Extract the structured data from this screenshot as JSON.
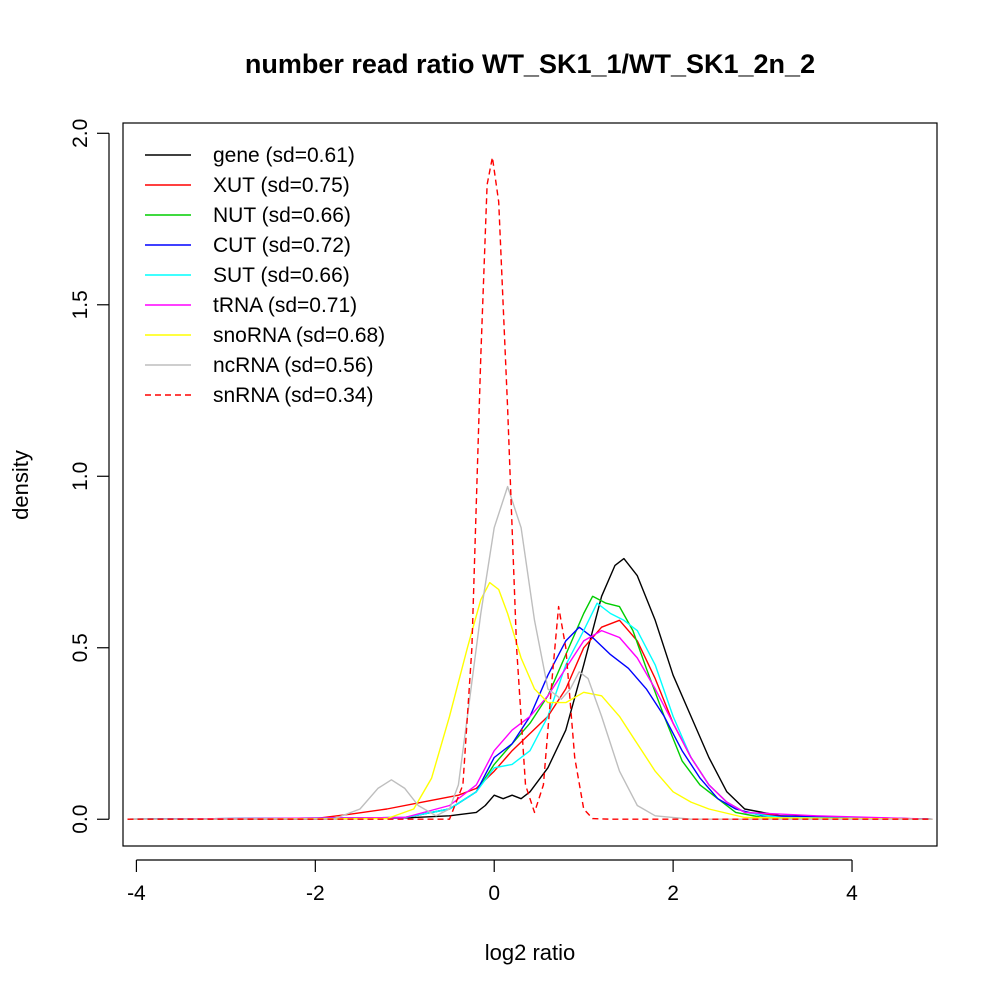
{
  "chart_data": {
    "type": "line",
    "title": "number read ratio WT_SK1_1/WT_SK1_2n_2",
    "xlabel": "log2 ratio",
    "ylabel": "density",
    "xlim": [
      -4.15,
      4.95
    ],
    "ylim": [
      -0.078,
      2.03
    ],
    "x_ticks": [
      -4,
      -2,
      0,
      2,
      4
    ],
    "x_tick_labels": [
      "-4",
      "-2",
      "0",
      "2",
      "4"
    ],
    "y_ticks": [
      0.0,
      0.5,
      1.0,
      1.5,
      2.0
    ],
    "y_tick_labels": [
      "0.0",
      "0.5",
      "1.0",
      "1.5",
      "2.0"
    ],
    "grid": false,
    "legend_position": "top-left",
    "series": [
      {
        "name": "gene (sd=0.61)",
        "color": "#000000",
        "dash": false,
        "points": [
          [
            -4.1,
            0
          ],
          [
            -2,
            0
          ],
          [
            -1,
            0.004
          ],
          [
            -0.5,
            0.01
          ],
          [
            -0.2,
            0.02
          ],
          [
            -0.1,
            0.04
          ],
          [
            0,
            0.07
          ],
          [
            0.1,
            0.06
          ],
          [
            0.2,
            0.07
          ],
          [
            0.3,
            0.06
          ],
          [
            0.4,
            0.08
          ],
          [
            0.6,
            0.15
          ],
          [
            0.8,
            0.26
          ],
          [
            1.0,
            0.45
          ],
          [
            1.2,
            0.65
          ],
          [
            1.35,
            0.74
          ],
          [
            1.45,
            0.76
          ],
          [
            1.6,
            0.71
          ],
          [
            1.8,
            0.58
          ],
          [
            2.0,
            0.42
          ],
          [
            2.2,
            0.3
          ],
          [
            2.4,
            0.18
          ],
          [
            2.6,
            0.08
          ],
          [
            2.8,
            0.03
          ],
          [
            3.2,
            0.01
          ],
          [
            4.9,
            0
          ]
        ]
      },
      {
        "name": "XUT (sd=0.75)",
        "color": "#ff0000",
        "dash": false,
        "points": [
          [
            -4.1,
            0
          ],
          [
            -2,
            0.002
          ],
          [
            -1.6,
            0.015
          ],
          [
            -1.2,
            0.03
          ],
          [
            -0.8,
            0.05
          ],
          [
            -0.4,
            0.07
          ],
          [
            -0.2,
            0.09
          ],
          [
            0,
            0.14
          ],
          [
            0.2,
            0.2
          ],
          [
            0.4,
            0.25
          ],
          [
            0.6,
            0.3
          ],
          [
            0.8,
            0.38
          ],
          [
            1.0,
            0.5
          ],
          [
            1.2,
            0.56
          ],
          [
            1.4,
            0.58
          ],
          [
            1.6,
            0.52
          ],
          [
            1.8,
            0.41
          ],
          [
            2.0,
            0.28
          ],
          [
            2.2,
            0.18
          ],
          [
            2.4,
            0.1
          ],
          [
            2.6,
            0.05
          ],
          [
            2.8,
            0.02
          ],
          [
            3.4,
            0.005
          ],
          [
            4.9,
            0
          ]
        ]
      },
      {
        "name": "NUT (sd=0.66)",
        "color": "#00cd00",
        "dash": false,
        "points": [
          [
            -4.1,
            0
          ],
          [
            -1,
            0.005
          ],
          [
            -0.5,
            0.03
          ],
          [
            -0.2,
            0.08
          ],
          [
            0,
            0.16
          ],
          [
            0.2,
            0.22
          ],
          [
            0.4,
            0.28
          ],
          [
            0.6,
            0.36
          ],
          [
            0.8,
            0.48
          ],
          [
            1.0,
            0.6
          ],
          [
            1.1,
            0.65
          ],
          [
            1.25,
            0.63
          ],
          [
            1.4,
            0.62
          ],
          [
            1.55,
            0.55
          ],
          [
            1.7,
            0.44
          ],
          [
            1.9,
            0.3
          ],
          [
            2.1,
            0.17
          ],
          [
            2.3,
            0.1
          ],
          [
            2.5,
            0.06
          ],
          [
            2.7,
            0.02
          ],
          [
            3.0,
            0.005
          ],
          [
            4.9,
            0
          ]
        ]
      },
      {
        "name": "CUT (sd=0.72)",
        "color": "#0000ff",
        "dash": false,
        "points": [
          [
            -4.1,
            0
          ],
          [
            -1,
            0.005
          ],
          [
            -0.5,
            0.03
          ],
          [
            -0.2,
            0.08
          ],
          [
            0,
            0.18
          ],
          [
            0.2,
            0.22
          ],
          [
            0.4,
            0.3
          ],
          [
            0.6,
            0.42
          ],
          [
            0.8,
            0.52
          ],
          [
            0.95,
            0.56
          ],
          [
            1.1,
            0.53
          ],
          [
            1.3,
            0.48
          ],
          [
            1.5,
            0.44
          ],
          [
            1.7,
            0.38
          ],
          [
            1.9,
            0.3
          ],
          [
            2.1,
            0.2
          ],
          [
            2.3,
            0.12
          ],
          [
            2.5,
            0.06
          ],
          [
            2.7,
            0.03
          ],
          [
            3.0,
            0.01
          ],
          [
            4.9,
            0
          ]
        ]
      },
      {
        "name": "SUT (sd=0.66)",
        "color": "#00ffff",
        "dash": false,
        "points": [
          [
            -4.1,
            0
          ],
          [
            -1,
            0.005
          ],
          [
            -0.5,
            0.03
          ],
          [
            -0.2,
            0.08
          ],
          [
            0,
            0.15
          ],
          [
            0.2,
            0.16
          ],
          [
            0.4,
            0.2
          ],
          [
            0.6,
            0.3
          ],
          [
            0.8,
            0.45
          ],
          [
            1.0,
            0.55
          ],
          [
            1.15,
            0.63
          ],
          [
            1.3,
            0.6
          ],
          [
            1.45,
            0.58
          ],
          [
            1.6,
            0.55
          ],
          [
            1.8,
            0.45
          ],
          [
            2.0,
            0.3
          ],
          [
            2.2,
            0.18
          ],
          [
            2.4,
            0.1
          ],
          [
            2.6,
            0.05
          ],
          [
            2.8,
            0.02
          ],
          [
            3.2,
            0.005
          ],
          [
            4.9,
            0
          ]
        ]
      },
      {
        "name": "tRNA (sd=0.71)",
        "color": "#ff00ff",
        "dash": false,
        "points": [
          [
            -4.1,
            0
          ],
          [
            -1,
            0.005
          ],
          [
            -0.5,
            0.04
          ],
          [
            -0.2,
            0.1
          ],
          [
            0,
            0.2
          ],
          [
            0.2,
            0.26
          ],
          [
            0.4,
            0.3
          ],
          [
            0.6,
            0.36
          ],
          [
            0.8,
            0.44
          ],
          [
            1.0,
            0.52
          ],
          [
            1.2,
            0.55
          ],
          [
            1.4,
            0.53
          ],
          [
            1.6,
            0.47
          ],
          [
            1.8,
            0.38
          ],
          [
            2.0,
            0.28
          ],
          [
            2.2,
            0.18
          ],
          [
            2.4,
            0.1
          ],
          [
            2.6,
            0.05
          ],
          [
            2.8,
            0.02
          ],
          [
            3.6,
            0.01
          ],
          [
            4.9,
            0
          ]
        ]
      },
      {
        "name": "snoRNA (sd=0.68)",
        "color": "#ffff00",
        "dash": false,
        "points": [
          [
            -4.1,
            0
          ],
          [
            -1.2,
            0.002
          ],
          [
            -0.9,
            0.03
          ],
          [
            -0.7,
            0.12
          ],
          [
            -0.5,
            0.3
          ],
          [
            -0.3,
            0.5
          ],
          [
            -0.15,
            0.64
          ],
          [
            -0.05,
            0.69
          ],
          [
            0.05,
            0.67
          ],
          [
            0.15,
            0.6
          ],
          [
            0.3,
            0.47
          ],
          [
            0.45,
            0.38
          ],
          [
            0.6,
            0.34
          ],
          [
            0.8,
            0.34
          ],
          [
            1.0,
            0.37
          ],
          [
            1.2,
            0.36
          ],
          [
            1.4,
            0.3
          ],
          [
            1.6,
            0.22
          ],
          [
            1.8,
            0.14
          ],
          [
            2.0,
            0.08
          ],
          [
            2.2,
            0.05
          ],
          [
            2.4,
            0.03
          ],
          [
            2.8,
            0.005
          ],
          [
            4.9,
            0
          ]
        ]
      },
      {
        "name": "ncRNA (sd=0.56)",
        "color": "#bebebe",
        "dash": false,
        "points": [
          [
            -4.1,
            0
          ],
          [
            -1.8,
            0
          ],
          [
            -1.5,
            0.03
          ],
          [
            -1.3,
            0.09
          ],
          [
            -1.15,
            0.115
          ],
          [
            -1.0,
            0.09
          ],
          [
            -0.85,
            0.04
          ],
          [
            -0.65,
            0.01
          ],
          [
            -0.5,
            0.03
          ],
          [
            -0.4,
            0.1
          ],
          [
            -0.3,
            0.3
          ],
          [
            -0.15,
            0.6
          ],
          [
            0,
            0.85
          ],
          [
            0.15,
            0.97
          ],
          [
            0.3,
            0.85
          ],
          [
            0.45,
            0.58
          ],
          [
            0.6,
            0.38
          ],
          [
            0.75,
            0.35
          ],
          [
            0.85,
            0.38
          ],
          [
            0.95,
            0.43
          ],
          [
            1.05,
            0.41
          ],
          [
            1.2,
            0.3
          ],
          [
            1.4,
            0.14
          ],
          [
            1.6,
            0.04
          ],
          [
            1.8,
            0.01
          ],
          [
            2.2,
            0
          ],
          [
            4.9,
            0
          ]
        ]
      },
      {
        "name": "snRNA (sd=0.34)",
        "color": "#ff0000",
        "dash": true,
        "points": [
          [
            -4.1,
            0
          ],
          [
            -0.5,
            0
          ],
          [
            -0.35,
            0.1
          ],
          [
            -0.25,
            0.5
          ],
          [
            -0.15,
            1.35
          ],
          [
            -0.08,
            1.85
          ],
          [
            -0.02,
            1.93
          ],
          [
            0.05,
            1.8
          ],
          [
            0.15,
            1.2
          ],
          [
            0.25,
            0.5
          ],
          [
            0.35,
            0.1
          ],
          [
            0.45,
            0.02
          ],
          [
            0.55,
            0.1
          ],
          [
            0.65,
            0.42
          ],
          [
            0.72,
            0.62
          ],
          [
            0.8,
            0.5
          ],
          [
            0.9,
            0.18
          ],
          [
            1.0,
            0.03
          ],
          [
            1.1,
            0.002
          ],
          [
            1.3,
            0
          ],
          [
            4.9,
            0
          ]
        ]
      }
    ]
  }
}
